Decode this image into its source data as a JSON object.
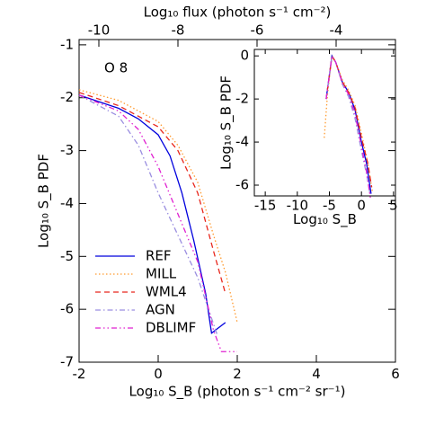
{
  "chart_data": [
    {
      "type": "line",
      "xlabel": "Log₁₀ S_B (photon s⁻¹ cm⁻² sr⁻¹)",
      "ylabel": "Log₁₀ S_B PDF",
      "top_xlabel": "Log₁₀ flux (photon s⁻¹ cm⁻²)",
      "annotation": "O 8",
      "xlim": [
        -2,
        6
      ],
      "xticks": [
        -2,
        0,
        2,
        4,
        6
      ],
      "ylim": [
        -7,
        -0.9
      ],
      "yticks": [
        -7,
        -6,
        -5,
        -4,
        -3,
        -2,
        -1
      ],
      "top_xlim": [
        -10.5,
        -2.5
      ],
      "top_xticks": [
        -10,
        -8,
        -6,
        -4
      ],
      "legend": "lower left",
      "series": [
        {
          "name": "REF",
          "color": "#0000dd",
          "linestyle": "solid",
          "x": [
            -2,
            -1,
            -0.5,
            0,
            0.3,
            0.6,
            0.9,
            1.2,
            1.35,
            1.7
          ],
          "values": [
            -1.95,
            -2.2,
            -2.4,
            -2.7,
            -3.1,
            -3.8,
            -4.7,
            -5.7,
            -6.45,
            -6.25
          ]
        },
        {
          "name": "MILL",
          "color": "#ff9a2e",
          "linestyle": "dotted",
          "x": [
            -2,
            -1,
            0,
            0.5,
            1,
            1.4,
            1.7,
            2
          ],
          "values": [
            -1.85,
            -2.05,
            -2.45,
            -2.9,
            -3.6,
            -4.6,
            -5.3,
            -6.25
          ]
        },
        {
          "name": "WML4",
          "color": "#e8261c",
          "linestyle": "dashed",
          "x": [
            -2,
            -1,
            0,
            0.5,
            1,
            1.4,
            1.7
          ],
          "values": [
            -1.9,
            -2.15,
            -2.55,
            -3.0,
            -3.8,
            -4.9,
            -5.7
          ]
        },
        {
          "name": "AGN",
          "color": "#9a8ee0",
          "linestyle": "dashdot",
          "x": [
            -2,
            -1,
            -0.5,
            0,
            0.5,
            1,
            1.5
          ],
          "values": [
            -1.95,
            -2.35,
            -2.9,
            -3.8,
            -4.6,
            -5.4,
            -6.5
          ]
        },
        {
          "name": "DBLIMF",
          "color": "#e020d0",
          "linestyle": "dashdotdot",
          "x": [
            -2,
            -1,
            -0.5,
            0,
            0.5,
            1,
            1.4,
            1.6,
            2
          ],
          "values": [
            -1.95,
            -2.25,
            -2.6,
            -3.3,
            -4.2,
            -5.1,
            -6.4,
            -6.8,
            -6.8
          ]
        }
      ]
    },
    {
      "type": "line",
      "xlabel": "Log₁₀ S_B",
      "ylabel": "Log₁₀ S_B PDF",
      "xlim": [
        -16.7,
        5.3
      ],
      "xticks": [
        -15,
        -10,
        -5,
        0,
        5
      ],
      "ylim": [
        -6.5,
        0.3
      ],
      "yticks": [
        -6,
        -4,
        -2,
        0
      ],
      "series": [
        {
          "color": "#0000dd",
          "linestyle": "solid",
          "x": [
            -5.5,
            -4.6,
            -4,
            -3,
            -2,
            -1,
            0,
            0.8,
            1.5
          ],
          "values": [
            -2,
            0,
            -0.3,
            -1.2,
            -1.7,
            -2.5,
            -4,
            -5,
            -6.4
          ]
        },
        {
          "color": "#ff9a2e",
          "linestyle": "dotted",
          "x": [
            -5.8,
            -5.3,
            -4.6,
            -4,
            -3,
            -2,
            -1,
            0,
            1,
            1.7
          ],
          "values": [
            -3.8,
            -1.8,
            0,
            -0.3,
            -1.1,
            -1.6,
            -2.3,
            -3.6,
            -5,
            -6.3
          ]
        },
        {
          "color": "#e8261c",
          "linestyle": "dashed",
          "x": [
            -5.5,
            -4.6,
            -4,
            -3,
            -2,
            -1,
            0,
            1,
            1.6
          ],
          "values": [
            -2,
            0,
            -0.3,
            -1.2,
            -1.7,
            -2.4,
            -3.8,
            -5,
            -6.1
          ]
        },
        {
          "color": "#9a8ee0",
          "linestyle": "dashdot",
          "x": [
            -5.5,
            -4.6,
            -4,
            -3,
            -2,
            -1,
            0,
            0.8,
            1.4
          ],
          "values": [
            -2,
            0,
            -0.3,
            -1.3,
            -1.9,
            -2.9,
            -4.4,
            -5.5,
            -6.5
          ]
        },
        {
          "color": "#e020d0",
          "linestyle": "dashdotdot",
          "x": [
            -5.5,
            -4.6,
            -4,
            -3,
            -2,
            -1,
            0,
            0.8,
            1.4
          ],
          "values": [
            -2,
            0,
            -0.3,
            -1.25,
            -1.8,
            -2.7,
            -4.2,
            -5.4,
            -6.6
          ]
        }
      ]
    }
  ]
}
